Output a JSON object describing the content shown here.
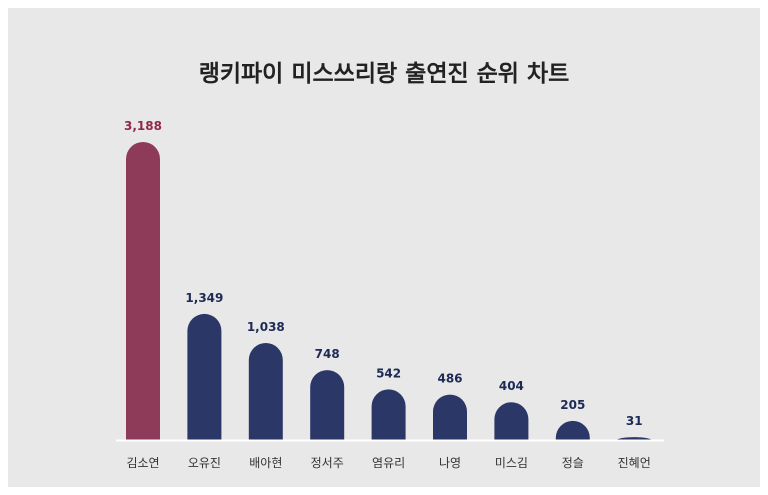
{
  "chart_data": {
    "type": "bar",
    "title": "랭키파이 미스쓰리랑 출연진 순위 차트",
    "categories": [
      "김소연",
      "오유진",
      "배아현",
      "정서주",
      "염유리",
      "나영",
      "미스김",
      "정슬",
      "진혜언"
    ],
    "values": [
      3188,
      1349,
      1038,
      748,
      542,
      486,
      404,
      205,
      31
    ],
    "value_labels": [
      "3,188",
      "1,349",
      "1,038",
      "748",
      "542",
      "486",
      "404",
      "205",
      "31"
    ],
    "highlight_index": 0,
    "ylim": [
      0,
      3188
    ],
    "grid": false,
    "legend": "none"
  },
  "colors": {
    "highlight": "#8e3a59",
    "bar": "#2b3766",
    "highlight_label": "#8e2a48",
    "label": "#1e2a55",
    "baseline": "#ffffff"
  }
}
